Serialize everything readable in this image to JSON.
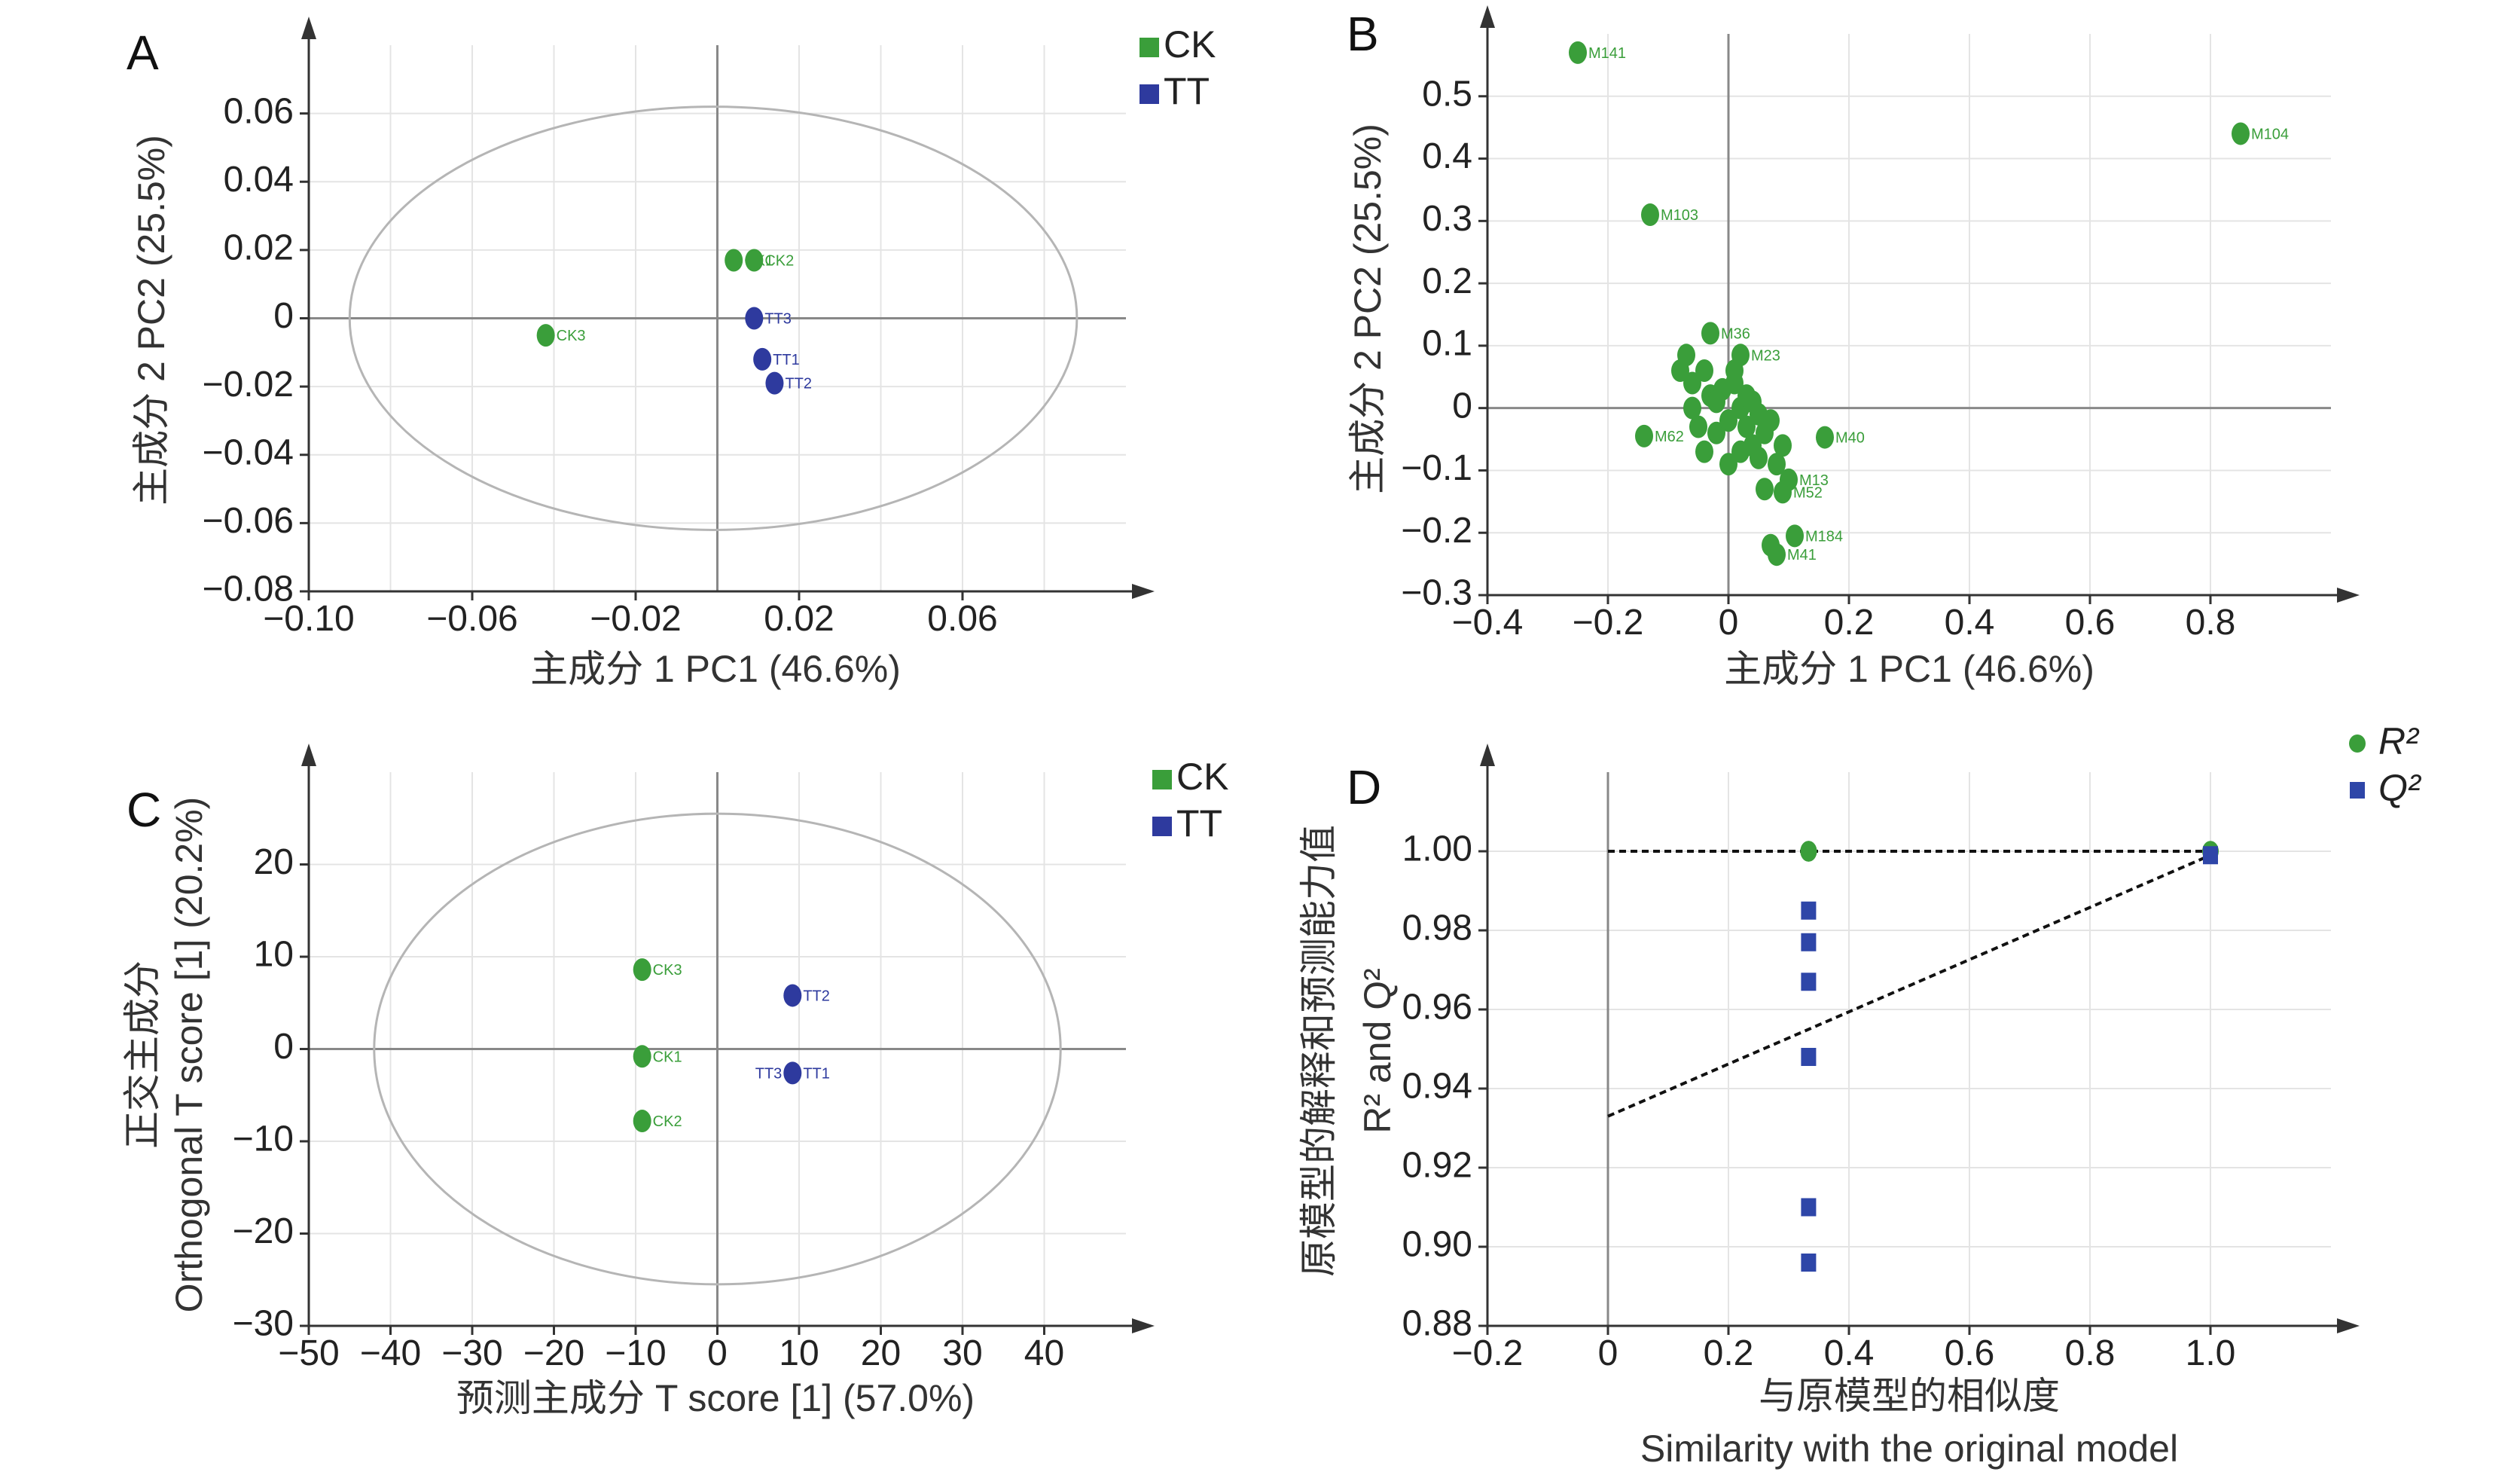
{
  "figure": {
    "colors": {
      "ck": "#3a9e3a",
      "tt": "#2e3a9e",
      "r2": "#3a9e3a",
      "q2": "#2e46a8"
    }
  },
  "chart_data": [
    {
      "panel": "A",
      "type": "scatter",
      "xlabel": "主成分 1  PC1 (46.6%)",
      "ylabel": "主成分 2  PC2 (25.5%)",
      "xlim": [
        -0.1,
        0.1
      ],
      "ylim": [
        -0.08,
        0.08
      ],
      "xticks": [
        "−0.10",
        "−0.06",
        "−0.02",
        "0.02",
        "0.06"
      ],
      "xtick_values": [
        -0.1,
        -0.06,
        -0.02,
        0.02,
        0.06
      ],
      "yticks": [
        "0.06",
        "0.04",
        "0.02",
        "0",
        "−0.02",
        "−0.04",
        "−0.06",
        "−0.08"
      ],
      "ytick_values": [
        0.06,
        0.04,
        0.02,
        0,
        -0.02,
        -0.04,
        -0.06,
        -0.08
      ],
      "legend": [
        {
          "name": "CK",
          "color": "#3a9e3a"
        },
        {
          "name": "TT",
          "color": "#2e3a9e"
        }
      ],
      "ellipse": {
        "cx": -0.001,
        "cy": 0.0,
        "rx": 0.089,
        "ry": 0.062
      },
      "series": [
        {
          "name": "CK",
          "color": "#3a9e3a",
          "points": [
            {
              "label": "CK1",
              "x": 0.004,
              "y": 0.017
            },
            {
              "label": "CK2",
              "x": 0.009,
              "y": 0.017
            },
            {
              "label": "CK3",
              "x": -0.042,
              "y": -0.005
            }
          ]
        },
        {
          "name": "TT",
          "color": "#2e3a9e",
          "points": [
            {
              "label": "TT3",
              "x": 0.009,
              "y": 0.0
            },
            {
              "label": "TT1",
              "x": 0.011,
              "y": -0.012
            },
            {
              "label": "TT2",
              "x": 0.014,
              "y": -0.019
            }
          ]
        }
      ]
    },
    {
      "panel": "B",
      "type": "scatter",
      "xlabel": "主成分 1  PC1 (46.6%)",
      "ylabel": "主成分 2  PC2 (25.5%)",
      "xlim": [
        -0.4,
        1.0
      ],
      "ylim": [
        -0.3,
        0.6
      ],
      "xticks": [
        "−0.4",
        "−0.2",
        "0",
        "0.2",
        "0.4",
        "0.6",
        "0.8"
      ],
      "xtick_values": [
        -0.4,
        -0.2,
        0,
        0.2,
        0.4,
        0.6,
        0.8
      ],
      "yticks": [
        "0.5",
        "0.4",
        "0.3",
        "0.2",
        "0.1",
        "0",
        "−0.1",
        "−0.2",
        "−0.3"
      ],
      "ytick_values": [
        0.5,
        0.4,
        0.3,
        0.2,
        0.1,
        0,
        -0.1,
        -0.2,
        -0.3
      ],
      "series": [
        {
          "name": "",
          "color": "#3a9e3a",
          "points": [
            {
              "label": "M141",
              "x": -0.25,
              "y": 0.57
            },
            {
              "label": "M104",
              "x": 0.85,
              "y": 0.44
            },
            {
              "label": "M103",
              "x": -0.13,
              "y": 0.31
            },
            {
              "label": "M36",
              "x": -0.03,
              "y": 0.12
            },
            {
              "label": "M23",
              "x": 0.02,
              "y": 0.085
            },
            {
              "label": "M62",
              "x": -0.14,
              "y": -0.045
            },
            {
              "label": "M40",
              "x": 0.16,
              "y": -0.047
            },
            {
              "label": "M184",
              "x": 0.11,
              "y": -0.205
            },
            {
              "label": "M41",
              "x": 0.08,
              "y": -0.235
            },
            {
              "label": "M52",
              "x": 0.09,
              "y": -0.135
            },
            {
              "label": "M13",
              "x": 0.1,
              "y": -0.115
            },
            {
              "label": "",
              "x": 0.07,
              "y": -0.22
            },
            {
              "label": "",
              "x": -0.07,
              "y": 0.085
            },
            {
              "label": "",
              "x": -0.08,
              "y": 0.06
            },
            {
              "label": "",
              "x": -0.06,
              "y": 0.04
            },
            {
              "label": "",
              "x": -0.06,
              "y": 0.0
            },
            {
              "label": "",
              "x": -0.04,
              "y": 0.06
            },
            {
              "label": "",
              "x": -0.04,
              "y": -0.07
            },
            {
              "label": "",
              "x": -0.03,
              "y": 0.02
            },
            {
              "label": "",
              "x": -0.02,
              "y": -0.04
            },
            {
              "label": "",
              "x": -0.01,
              "y": 0.03
            },
            {
              "label": "",
              "x": 0.0,
              "y": -0.02
            },
            {
              "label": "",
              "x": 0.01,
              "y": 0.04
            },
            {
              "label": "",
              "x": 0.02,
              "y": 0.0
            },
            {
              "label": "",
              "x": 0.03,
              "y": -0.03
            },
            {
              "label": "",
              "x": 0.03,
              "y": 0.02
            },
            {
              "label": "",
              "x": 0.04,
              "y": -0.06
            },
            {
              "label": "",
              "x": 0.05,
              "y": -0.01
            },
            {
              "label": "",
              "x": 0.05,
              "y": -0.08
            },
            {
              "label": "",
              "x": 0.06,
              "y": -0.04
            },
            {
              "label": "",
              "x": 0.07,
              "y": -0.02
            },
            {
              "label": "",
              "x": 0.08,
              "y": -0.09
            },
            {
              "label": "",
              "x": 0.09,
              "y": -0.06
            },
            {
              "label": "",
              "x": 0.0,
              "y": -0.09
            },
            {
              "label": "",
              "x": 0.02,
              "y": -0.07
            },
            {
              "label": "",
              "x": 0.01,
              "y": 0.06
            },
            {
              "label": "",
              "x": -0.05,
              "y": -0.03
            },
            {
              "label": "",
              "x": 0.06,
              "y": -0.13
            },
            {
              "label": "",
              "x": 0.04,
              "y": 0.01
            },
            {
              "label": "",
              "x": -0.02,
              "y": 0.01
            }
          ]
        }
      ]
    },
    {
      "panel": "C",
      "type": "scatter",
      "xlabel": "预测主成分 T score [1] (57.0%)",
      "ylabel_cn": "正交主成分",
      "ylabel": "Orthogonal T score [1] (20.2%)",
      "xlim": [
        -50,
        50
      ],
      "ylim": [
        -30,
        30
      ],
      "xticks": [
        "−50",
        "−40",
        "−30",
        "−20",
        "−10",
        "0",
        "10",
        "20",
        "30",
        "40"
      ],
      "xtick_values": [
        -50,
        -40,
        -30,
        -20,
        -10,
        0,
        10,
        20,
        30,
        40
      ],
      "yticks": [
        "20",
        "10",
        "0",
        "−10",
        "−20",
        "−30"
      ],
      "ytick_values": [
        20,
        10,
        0,
        -10,
        -20,
        -30
      ],
      "legend": [
        {
          "name": "CK",
          "color": "#3a9e3a"
        },
        {
          "name": "TT",
          "color": "#2e3a9e"
        }
      ],
      "ellipse": {
        "cx": 0,
        "cy": 0,
        "rx": 42,
        "ry": 25.5
      },
      "series": [
        {
          "name": "CK",
          "color": "#3a9e3a",
          "points": [
            {
              "label": "CK3",
              "x": -9.2,
              "y": 8.6
            },
            {
              "label": "CK1",
              "x": -9.2,
              "y": -0.8
            },
            {
              "label": "CK2",
              "x": -9.2,
              "y": -7.8
            }
          ]
        },
        {
          "name": "TT",
          "color": "#2e3a9e",
          "points": [
            {
              "label": "TT2",
              "x": 9.2,
              "y": 5.8
            },
            {
              "label": "TT3 TT1",
              "x": 9.2,
              "y": -2.6
            }
          ]
        }
      ]
    },
    {
      "panel": "D",
      "type": "scatter",
      "xlabel_cn": "与原模型的相似度",
      "xlabel": "Similarity with the original model",
      "ylabel_cn": "原模型的解释和预测能力值",
      "ylabel": "R² and Q²",
      "xlim": [
        -0.2,
        1.2
      ],
      "ylim": [
        0.88,
        1.02
      ],
      "xticks": [
        "−0.2",
        "0",
        "0.2",
        "0.4",
        "0.6",
        "0.8",
        "1.0"
      ],
      "xtick_values": [
        -0.2,
        0,
        0.2,
        0.4,
        0.6,
        0.8,
        1.0
      ],
      "yticks": [
        "1.00",
        "0.98",
        "0.96",
        "0.94",
        "0.92",
        "0.90",
        "0.88"
      ],
      "ytick_values": [
        1.0,
        0.98,
        0.96,
        0.94,
        0.92,
        0.9,
        0.88
      ],
      "legend": [
        {
          "name": "R²",
          "color": "#3a9e3a",
          "marker": "circle"
        },
        {
          "name": "Q²",
          "color": "#2e46a8",
          "marker": "square"
        }
      ],
      "series": [
        {
          "name": "R²",
          "color": "#3a9e3a",
          "marker": "circle",
          "points": [
            {
              "x": 0.333,
              "y": 1.0
            },
            {
              "x": 0.333,
              "y": 1.0
            },
            {
              "x": 1.0,
              "y": 1.0
            }
          ]
        },
        {
          "name": "Q²",
          "color": "#2e46a8",
          "marker": "square",
          "points": [
            {
              "x": 0.333,
              "y": 0.985
            },
            {
              "x": 0.333,
              "y": 0.977
            },
            {
              "x": 0.333,
              "y": 0.967
            },
            {
              "x": 0.333,
              "y": 0.948
            },
            {
              "x": 0.333,
              "y": 0.91
            },
            {
              "x": 0.333,
              "y": 0.896
            },
            {
              "x": 1.0,
              "y": 0.999
            }
          ]
        }
      ],
      "regression_lines": [
        {
          "name": "R²",
          "x": [
            0,
            1.0
          ],
          "y": [
            1.0,
            1.0
          ]
        },
        {
          "name": "Q²",
          "x": [
            0,
            1.0
          ],
          "y": [
            0.933,
            0.999
          ]
        }
      ]
    }
  ]
}
